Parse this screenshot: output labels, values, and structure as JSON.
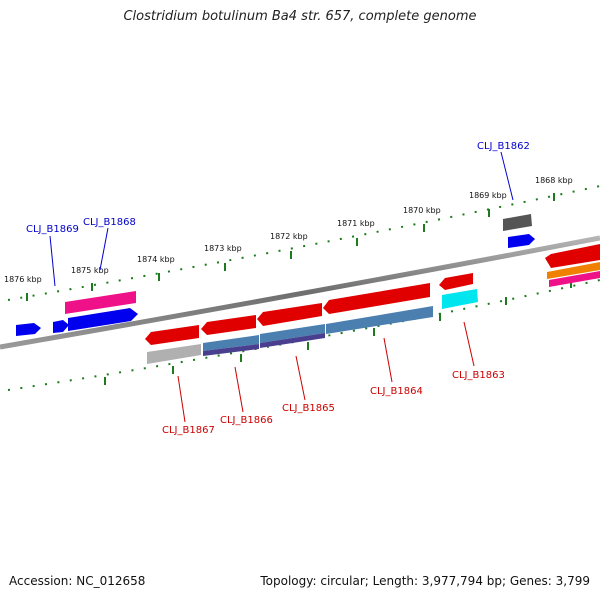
{
  "title": "Clostridium botulinum Ba4 str. 657, complete genome",
  "footer": {
    "accession": "Accession: NC_012658",
    "summary": "Topology: circular; Length: 3,977,794 bp; Genes: 3,799"
  },
  "kbp_labels": [
    "1876 kbp",
    "1875 kbp",
    "1874 kbp",
    "1873 kbp",
    "1872 kbp",
    "1871 kbp",
    "1870 kbp",
    "1869 kbp",
    "1868 kbp"
  ],
  "genes_top": [
    {
      "label": "CLJ_B1869",
      "color": "#0000cc"
    },
    {
      "label": "CLJ_B1868",
      "color": "#0000cc"
    },
    {
      "label": "CLJ_B1862",
      "color": "#0000cc"
    }
  ],
  "genes_bottom": [
    {
      "label": "CLJ_B1867",
      "color": "#cc0000"
    },
    {
      "label": "CLJ_B1866",
      "color": "#cc0000"
    },
    {
      "label": "CLJ_B1865",
      "color": "#cc0000"
    },
    {
      "label": "CLJ_B1864",
      "color": "#cc0000"
    },
    {
      "label": "CLJ_B1863",
      "color": "#cc0000"
    }
  ],
  "colors": {
    "backbone": "#7a7a7a",
    "tick": "#1e7a1e",
    "forward_gene": "#0000ee",
    "reverse_gene": "#e00000",
    "pink": "#ee1188",
    "gray_gene": "#b0b0b0",
    "steel": "#4a7fb0",
    "purple": "#4a3f8f",
    "cyan": "#00e5ee",
    "dark_gray": "#555555",
    "orange": "#f08000"
  }
}
